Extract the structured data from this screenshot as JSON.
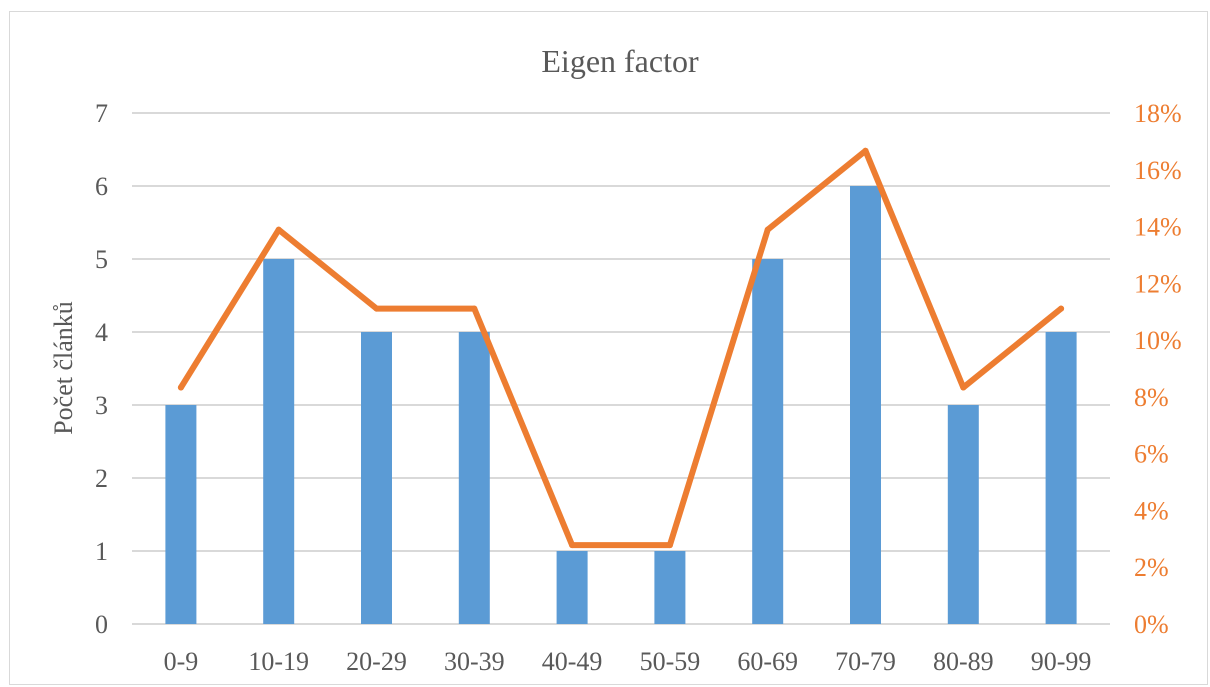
{
  "chart_data": {
    "type": "bar",
    "title": "Eigen factor",
    "xlabel": "",
    "ylabel": "Počet článků",
    "categories": [
      "0-9",
      "10-19",
      "20-29",
      "30-39",
      "40-49",
      "50-59",
      "60-69",
      "70-79",
      "80-89",
      "90-99"
    ],
    "ylim": [
      0,
      7
    ],
    "yticks": [
      "0",
      "1",
      "2",
      "3",
      "4",
      "5",
      "6",
      "7"
    ],
    "y2lim": [
      0,
      18
    ],
    "y2ticks": [
      "0%",
      "2%",
      "4%",
      "6%",
      "8%",
      "10%",
      "12%",
      "14%",
      "16%",
      "18%"
    ],
    "grid": true,
    "legend": "none",
    "series": [
      {
        "type": "bar",
        "axis": "left",
        "color": "#5b9bd5",
        "values": [
          3,
          5,
          4,
          4,
          1,
          1,
          5,
          6,
          3,
          4
        ]
      },
      {
        "type": "line",
        "axis": "right",
        "color": "#ed7d31",
        "values": [
          8.33,
          13.89,
          11.11,
          11.11,
          2.78,
          2.78,
          13.89,
          16.67,
          8.33,
          11.11
        ]
      }
    ]
  }
}
